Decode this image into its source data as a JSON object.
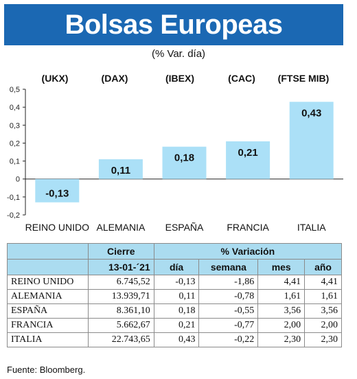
{
  "title": "Bolsas Europeas",
  "subtitle": "(% Var. día)",
  "tickers": [
    "(UKX)",
    "(DAX)",
    "(IBEX)",
    "(CAC)",
    "(FTSE MIB)"
  ],
  "chart_data": {
    "type": "bar",
    "categories": [
      "REINO UNIDO",
      "ALEMANIA",
      "ESPAÑA",
      "FRANCIA",
      "ITALIA"
    ],
    "values": [
      -0.13,
      0.11,
      0.18,
      0.21,
      0.43
    ],
    "value_labels": [
      "-0,13",
      "0,11",
      "0,18",
      "0,21",
      "0,43"
    ],
    "ylim": [
      -0.2,
      0.5
    ],
    "yticks": [
      -0.2,
      -0.1,
      0,
      0.1,
      0.2,
      0.3,
      0.4,
      0.5
    ],
    "ytick_labels": [
      "-0,2",
      "-0,1",
      "0",
      "0,1",
      "0,2",
      "0,3",
      "0,4",
      "0,5"
    ],
    "bar_color": "#abe0f7",
    "grid": false
  },
  "table": {
    "header1": {
      "cierre": "Cierre",
      "variacion": "% Variación"
    },
    "header2": {
      "date": "13-01-´21",
      "dia": "día",
      "semana": "semana",
      "mes": "mes",
      "ano": "año"
    },
    "rows": [
      {
        "country": "REINO UNIDO",
        "cierre": "6.745,52",
        "dia": "-0,13",
        "semana": "-1,86",
        "mes": "4,41",
        "ano": "4,41"
      },
      {
        "country": "ALEMANIA",
        "cierre": "13.939,71",
        "dia": "0,11",
        "semana": "-0,78",
        "mes": "1,61",
        "ano": "1,61"
      },
      {
        "country": "ESPAÑA",
        "cierre": "8.361,10",
        "dia": "0,18",
        "semana": "-0,55",
        "mes": "3,56",
        "ano": "3,56"
      },
      {
        "country": "FRANCIA",
        "cierre": "5.662,67",
        "dia": "0,21",
        "semana": "-0,77",
        "mes": "2,00",
        "ano": "2,00"
      },
      {
        "country": "ITALIA",
        "cierre": "22.743,65",
        "dia": "0,43",
        "semana": "-0,22",
        "mes": "2,30",
        "ano": "2,30"
      }
    ]
  },
  "source": "Fuente: Bloomberg.",
  "colors": {
    "title_bg": "#1b68b3",
    "header_bg": "#abdcf0"
  }
}
